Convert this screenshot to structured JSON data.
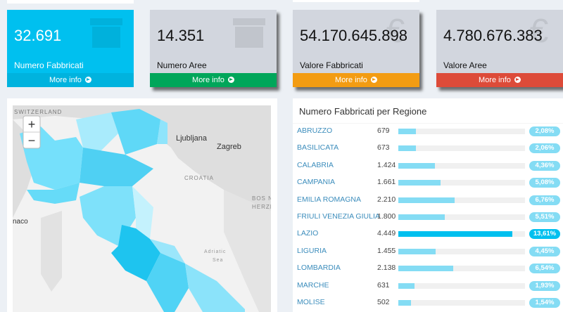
{
  "boxes": [
    {
      "value": "32.691",
      "label": "Numero Fabbricati",
      "link": "More info"
    },
    {
      "value": "14.351",
      "label": "Numero Aree",
      "link": "More info"
    },
    {
      "value": "54.170.645.898",
      "label": "Valore Fabbricati",
      "link": "More info"
    },
    {
      "value": "4.780.676.383",
      "label": "Valore Aree",
      "link": "More info"
    }
  ],
  "map": {
    "zoom_in": "+",
    "zoom_out": "−",
    "labels": [
      "SWITZERLAND",
      "Ljubljana",
      "Zagreb",
      "CROATIA",
      "BOS NI",
      "HERZE",
      "naco",
      "Adriatic",
      "Sea"
    ]
  },
  "panel": {
    "title": "Numero Fabbricati per Regione",
    "rows": [
      {
        "name": "ABRUZZO",
        "count": "679",
        "pct": 2.08,
        "pct_label": "2,08%"
      },
      {
        "name": "BASILICATA",
        "count": "673",
        "pct": 2.06,
        "pct_label": "2,06%"
      },
      {
        "name": "CALABRIA",
        "count": "1.424",
        "pct": 4.36,
        "pct_label": "4,36%"
      },
      {
        "name": "CAMPANIA",
        "count": "1.661",
        "pct": 5.08,
        "pct_label": "5,08%"
      },
      {
        "name": "EMILIA ROMAGNA",
        "count": "2.210",
        "pct": 6.76,
        "pct_label": "6,76%"
      },
      {
        "name": "FRIULI VENEZIA GIULIA",
        "count": "1.800",
        "pct": 5.51,
        "pct_label": "5,51%"
      },
      {
        "name": "LAZIO",
        "count": "4.449",
        "pct": 13.61,
        "pct_label": "13,61%"
      },
      {
        "name": "LIGURIA",
        "count": "1.455",
        "pct": 4.45,
        "pct_label": "4,45%"
      },
      {
        "name": "LOMBARDIA",
        "count": "2.138",
        "pct": 6.54,
        "pct_label": "6,54%"
      },
      {
        "name": "MARCHE",
        "count": "631",
        "pct": 1.93,
        "pct_label": "1,93%"
      },
      {
        "name": "MOLISE",
        "count": "502",
        "pct": 1.54,
        "pct_label": "1,54%"
      }
    ]
  }
}
